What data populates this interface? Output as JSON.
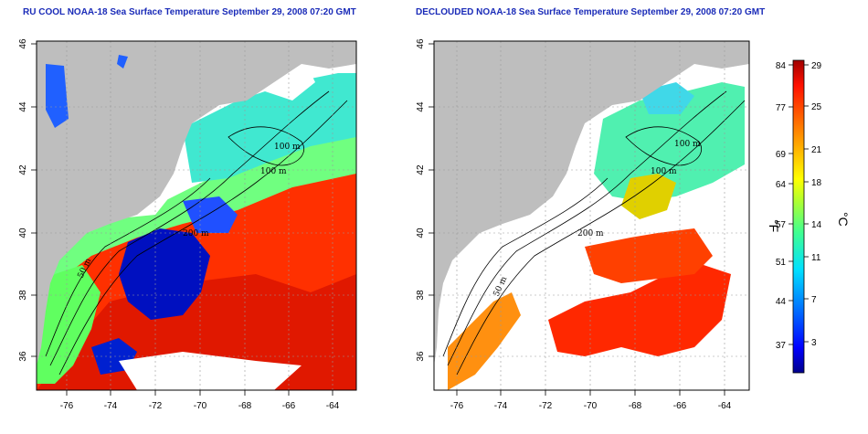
{
  "panels": [
    {
      "title": "RU COOL NOAA-18 Sea Surface Temperature September 29, 2008 07:20 GMT",
      "kind": "raw"
    },
    {
      "title": "DECLOUDED NOAA-18 Sea Surface Temperature September 29, 2008 07:20 GMT",
      "kind": "declouded"
    }
  ],
  "axes": {
    "lon_ticks": [
      "-76",
      "-74",
      "-72",
      "-70",
      "-68",
      "-66",
      "-64"
    ],
    "lat_ticks": [
      "36",
      "38",
      "40",
      "42",
      "44",
      "46"
    ]
  },
  "contours": {
    "labels": [
      "100 m",
      "100 m",
      "200 m",
      "50 m",
      "50 m"
    ]
  },
  "colorbar": {
    "fahrenheit_ticks": [
      "84",
      "77",
      "69",
      "64",
      "57",
      "51",
      "44",
      "37"
    ],
    "celsius_ticks": [
      "29",
      "25",
      "21",
      "18",
      "14",
      "11",
      "7",
      "3"
    ],
    "fahrenheit_unit": "°F",
    "celsius_unit": "°C",
    "colors": [
      "#00008b",
      "#0000ff",
      "#00a0ff",
      "#00ffff",
      "#40ff90",
      "#a0ff40",
      "#ffff00",
      "#ffb000",
      "#ff6000",
      "#ff0000",
      "#a00000"
    ]
  },
  "legend_colors": {
    "land": "#bebebe",
    "cloud": "#ffffff",
    "contour": "#000000",
    "grid": "#9a9a9a"
  }
}
